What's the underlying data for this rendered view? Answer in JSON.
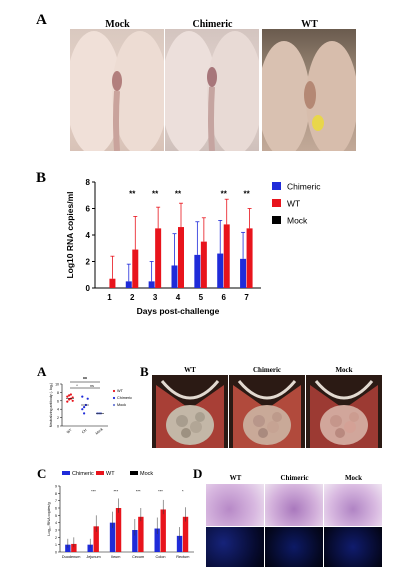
{
  "panel_top_A": {
    "letter": "A",
    "labels": [
      "Mock",
      "Chimeric",
      "WT"
    ]
  },
  "panel_top_B": {
    "letter": "B"
  },
  "panel_bottom": {
    "A_letter": "A",
    "B_letter": "B",
    "C_letter": "C",
    "D_letter": "D",
    "B_labels": [
      "WT",
      "Chimeric",
      "Mock"
    ],
    "D_labels": [
      "WT",
      "Chimeric",
      "Mock"
    ]
  },
  "colors": {
    "chimeric": "#1f2bd9",
    "wt": "#e8141c",
    "mock": "#000000"
  },
  "chart_data": [
    {
      "id": "top-B",
      "type": "bar",
      "ylabel": "Log10 RNA copies/ml",
      "xlabel": "Days post-challenge",
      "categories": [
        "1",
        "2",
        "3",
        "4",
        "5",
        "6",
        "7"
      ],
      "ylim": [
        0,
        8
      ],
      "yticks": [
        0,
        2,
        4,
        6,
        8
      ],
      "legend_position": "right",
      "series": [
        {
          "name": "Chimeric",
          "values": [
            0.0,
            0.5,
            0.5,
            1.7,
            2.5,
            2.6,
            2.2
          ],
          "errors": [
            0,
            1.3,
            1.5,
            2.4,
            2.5,
            2.5,
            2.0
          ]
        },
        {
          "name": "WT",
          "values": [
            0.7,
            2.9,
            4.5,
            4.6,
            3.5,
            4.8,
            4.5
          ],
          "errors": [
            1.7,
            2.5,
            1.6,
            1.8,
            1.8,
            1.9,
            1.5
          ]
        },
        {
          "name": "Mock",
          "values": [
            0,
            0,
            0,
            0,
            0,
            0,
            0
          ],
          "errors": [
            0,
            0,
            0,
            0,
            0,
            0,
            0
          ]
        }
      ],
      "annotations": [
        "",
        "**",
        "**",
        "**",
        "",
        "**",
        "**"
      ]
    },
    {
      "id": "bottom-A",
      "type": "scatter",
      "ylabel": "Neutralizing antibody (- log₂)",
      "categories": [
        "WT",
        "CH",
        "Mock"
      ],
      "ylim": [
        0,
        10
      ],
      "yticks": [
        0,
        2,
        4,
        6,
        8,
        10
      ],
      "legend": [
        "WT",
        "Chimeric",
        "Mock"
      ],
      "groups": [
        {
          "name": "WT",
          "points": [
            5.8,
            6.3,
            6.5,
            6.8,
            7.0,
            7.3,
            7.5,
            6.0
          ],
          "mean": 6.6
        },
        {
          "name": "Chimeric",
          "points": [
            4.0,
            4.5,
            5.0,
            6.5,
            7.0,
            3.0
          ],
          "mean": 5.0
        },
        {
          "name": "Mock",
          "points": [
            3.0,
            3.0,
            3.0
          ],
          "mean": 3.0
        }
      ],
      "annotations": [
        "**",
        "*",
        "ns"
      ]
    },
    {
      "id": "bottom-C",
      "type": "bar",
      "ylabel": "Log₁₀ RNA copies/g",
      "categories": [
        "Duodenum",
        "Jejunum",
        "Ileum",
        "Cecum",
        "Colon",
        "Rectum"
      ],
      "ylim": [
        0,
        9
      ],
      "yticks": [
        0,
        1,
        2,
        3,
        4,
        5,
        6,
        7,
        8,
        9
      ],
      "legend": [
        "Chimeric",
        "WT",
        "Mock"
      ],
      "series": [
        {
          "name": "Chimeric",
          "values": [
            1.0,
            1.0,
            4.0,
            3.0,
            3.2,
            2.2
          ],
          "errors": [
            0.8,
            0.8,
            1.5,
            1.5,
            1.5,
            1.2
          ]
        },
        {
          "name": "WT",
          "values": [
            1.1,
            3.5,
            6.0,
            4.8,
            5.8,
            4.8
          ],
          "errors": [
            0.9,
            1.5,
            1.3,
            1.2,
            1.3,
            1.3
          ]
        },
        {
          "name": "Mock",
          "values": [
            0,
            0,
            0,
            0,
            0,
            0
          ],
          "errors": [
            0,
            0,
            0,
            0,
            0,
            0
          ]
        }
      ],
      "annotations": [
        "",
        "***",
        "***",
        "***",
        "***",
        "*"
      ]
    }
  ]
}
